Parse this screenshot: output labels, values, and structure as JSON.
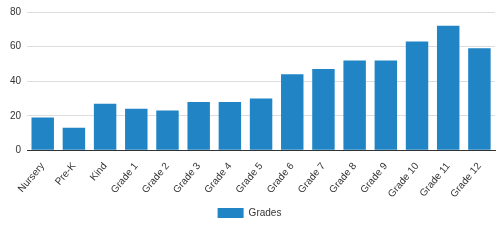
{
  "chart_data": {
    "type": "bar",
    "categories": [
      "Nursery",
      "Pre-K",
      "Kind",
      "Grade 1",
      "Grade 2",
      "Grade 3",
      "Grade 4",
      "Grade 5",
      "Grade 6",
      "Grade 7",
      "Grade 8",
      "Grade 9",
      "Grade 10",
      "Grade 11",
      "Grade 12"
    ],
    "series": [
      {
        "name": "Grades",
        "color": "#2185c5",
        "values": [
          19,
          13,
          27,
          24,
          23,
          28,
          28,
          30,
          44,
          47,
          52,
          52,
          63,
          72,
          59
        ]
      }
    ],
    "ylim": [
      0,
      80
    ],
    "yticks": [
      0,
      20,
      40,
      60,
      80
    ],
    "grid": true,
    "legend": "bottom"
  }
}
